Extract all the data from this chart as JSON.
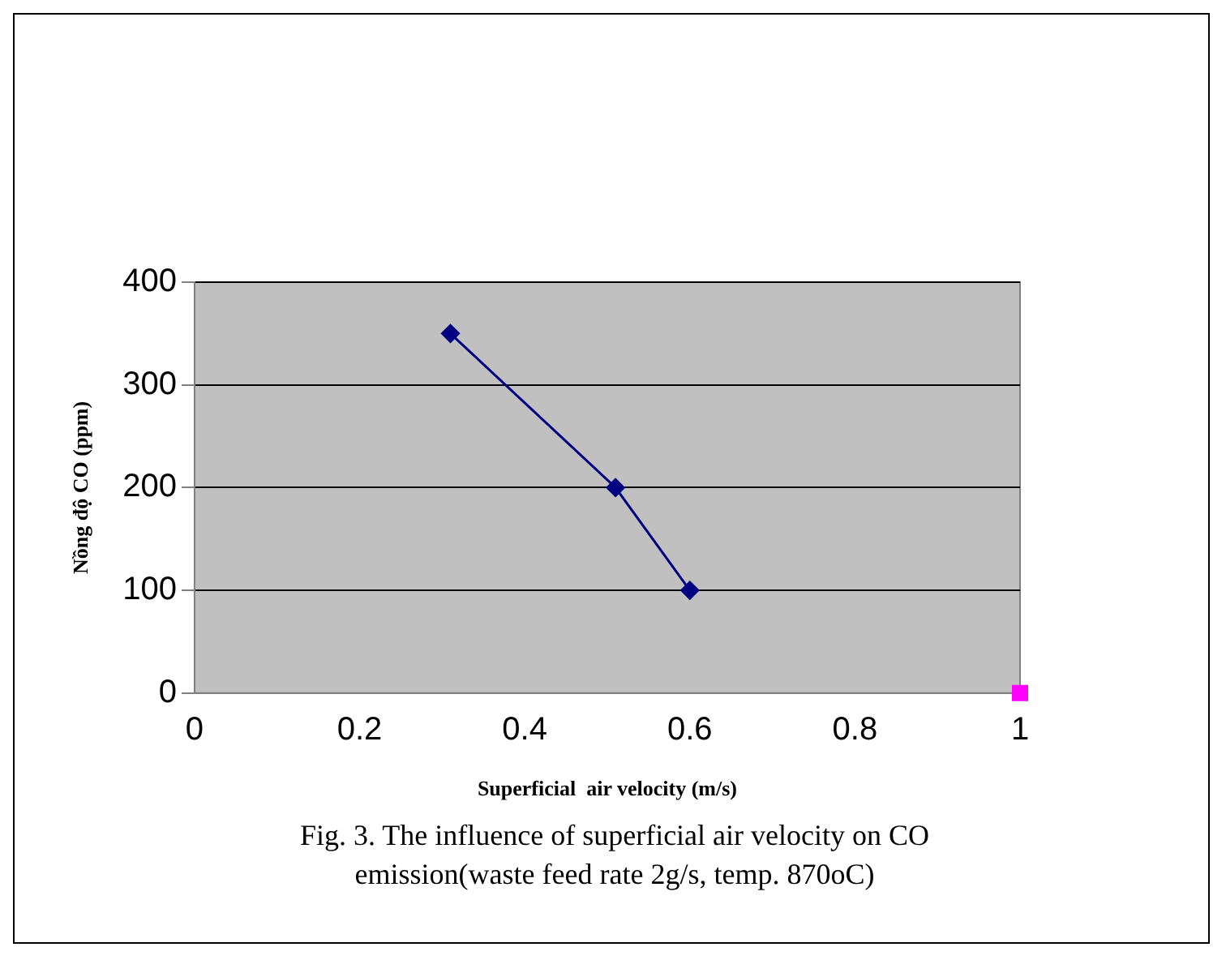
{
  "chart_data": {
    "type": "line",
    "xlabel": "Superficial  air velocity (m/s)",
    "ylabel": "Nồng độ CO (ppm)",
    "xlim": [
      0,
      1
    ],
    "xticks": [
      0,
      0.2,
      0.4,
      0.6,
      0.8,
      1
    ],
    "ylim": [
      0,
      400
    ],
    "yticks": [
      0,
      100,
      200,
      300,
      400
    ],
    "grid": "y",
    "legend": false,
    "marker": "diamond",
    "line_style": "solid",
    "series": [
      {
        "color": "#000080",
        "x": [
          0.31,
          0.51,
          0.6
        ],
        "values": [
          350,
          200,
          100
        ]
      },
      {
        "marker": "square",
        "color": "#ff00ff",
        "x": [
          1
        ],
        "values": [
          0
        ]
      }
    ],
    "annotations": [
      "Fig. 3. The influence of superficial air velocity on CO emission(waste feed rate 2g/s, temp. 870oC)"
    ]
  }
}
